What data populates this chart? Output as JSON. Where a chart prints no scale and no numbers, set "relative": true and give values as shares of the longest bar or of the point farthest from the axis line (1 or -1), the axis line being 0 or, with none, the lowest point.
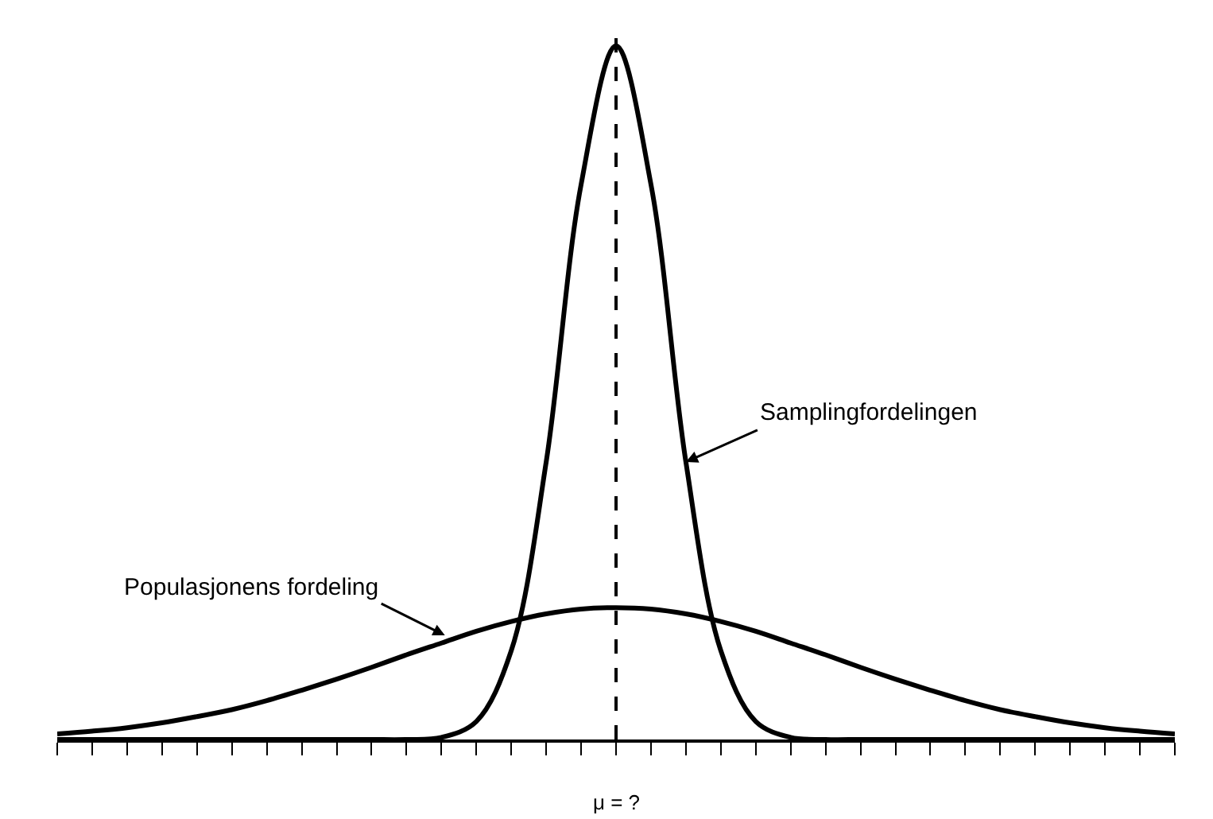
{
  "chart_data": {
    "type": "line",
    "relative": true,
    "categories": [
      null,
      null,
      null,
      null,
      null,
      null,
      null,
      null,
      null,
      null,
      null,
      null,
      null,
      null,
      null,
      null,
      null,
      null,
      null,
      null,
      null,
      null,
      null,
      null,
      null,
      null,
      null,
      null,
      null,
      null,
      null,
      null,
      null
    ],
    "series": [
      {
        "color": "#000000",
        "values": [
          0,
          0,
          0,
          0,
          0,
          0,
          0,
          0,
          0,
          0,
          0,
          0.003,
          0.026,
          0.128,
          0.4,
          0.8,
          1,
          0.8,
          0.4,
          0.128,
          0.026,
          0.003,
          0,
          0,
          0,
          0,
          0,
          0,
          0,
          0,
          0,
          0,
          0
        ]
      },
      {
        "color": "#000000",
        "values": [
          0.008,
          0.012,
          0.017,
          0.024,
          0.033,
          0.043,
          0.056,
          0.071,
          0.087,
          0.104,
          0.122,
          0.139,
          0.156,
          0.17,
          0.181,
          0.188,
          0.19,
          0.188,
          0.181,
          0.17,
          0.156,
          0.139,
          0.122,
          0.104,
          0.087,
          0.071,
          0.056,
          0.043,
          0.033,
          0.024,
          0.017,
          0.012,
          0.008
        ]
      }
    ],
    "ref_lines": [
      {
        "axis": "x",
        "label": "μ = ?",
        "color": "#000000",
        "line_style": "dashed"
      }
    ],
    "annotations": [
      "Samplingfordelingen",
      "Populasjonens fordeling"
    ],
    "marker": "none",
    "line_style": "solid"
  }
}
